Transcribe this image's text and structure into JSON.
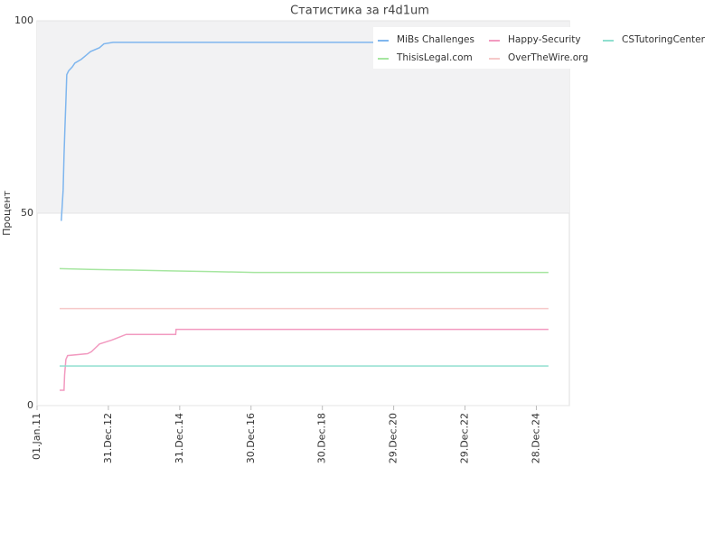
{
  "chart_data": {
    "type": "line",
    "title": "Статистика за r4d1um",
    "y_label": "Процент",
    "xlim": [
      "2011-01-01",
      "2025-12-01"
    ],
    "xticks": [
      {
        "value": "2011-01-01",
        "label": "01.Jan.11"
      },
      {
        "value": "2012-12-31",
        "label": "31.Dec.12"
      },
      {
        "value": "2014-12-31",
        "label": "31.Dec.14"
      },
      {
        "value": "2016-12-30",
        "label": "30.Dec.16"
      },
      {
        "value": "2018-12-30",
        "label": "30.Dec.18"
      },
      {
        "value": "2020-12-29",
        "label": "29.Dec.20"
      },
      {
        "value": "2022-12-29",
        "label": "29.Dec.22"
      },
      {
        "value": "2024-12-28",
        "label": "28.Dec.24"
      }
    ],
    "ylim": [
      0,
      100
    ],
    "yticks": [
      0,
      50,
      100
    ],
    "grid": true,
    "legend": "top-right",
    "series": [
      {
        "name": "MiBs Challenges",
        "color": "#7fb6ee",
        "x": [
          "2011-09-06",
          "2011-09-25",
          "2011-10-04",
          "2011-10-13",
          "2011-10-23",
          "2011-11-01",
          "2011-11-20",
          "2011-12-27",
          "2012-01-23",
          "2012-03-29",
          "2012-05-16",
          "2012-07-01",
          "2012-10-01",
          "2012-11-15",
          "2013-02-17",
          "2025-05-01"
        ],
        "values": [
          48,
          56,
          65,
          72,
          79,
          86,
          87,
          88,
          89,
          90,
          91,
          92,
          93,
          94,
          94.4,
          94.4
        ]
      },
      {
        "name": "Happy-Security",
        "color": "#f29ac0",
        "x": [
          "2011-08-20",
          "2011-10-04",
          "2011-10-10",
          "2011-10-23",
          "2011-11-10",
          "2012-06-01",
          "2012-07-10",
          "2012-10-01",
          "2013-02-01",
          "2013-07-01",
          "2014-11-20",
          "2014-11-24",
          "2025-05-01"
        ],
        "values": [
          4,
          4,
          8,
          12,
          13,
          13.5,
          14,
          16,
          17,
          18.5,
          18.5,
          19.8,
          19.8
        ]
      },
      {
        "name": "CSTutoringCenter",
        "color": "#8fdfcf",
        "x": [
          "2011-08-20",
          "2025-05-01"
        ],
        "values": [
          10.3,
          10.3
        ]
      },
      {
        "name": "ThisisLegal.com",
        "color": "#a6e6a0",
        "x": [
          "2011-08-20",
          "2012-07-01",
          "2013-09-01",
          "2014-10-01",
          "2016-01-01",
          "2017-02-01",
          "2025-05-01"
        ],
        "values": [
          35.6,
          35.4,
          35.2,
          35,
          34.8,
          34.6,
          34.6
        ]
      },
      {
        "name": "OverTheWire.org",
        "color": "#f6c9c9",
        "x": [
          "2011-08-20",
          "2025-05-01"
        ],
        "values": [
          25.2,
          25.2
        ]
      }
    ]
  }
}
